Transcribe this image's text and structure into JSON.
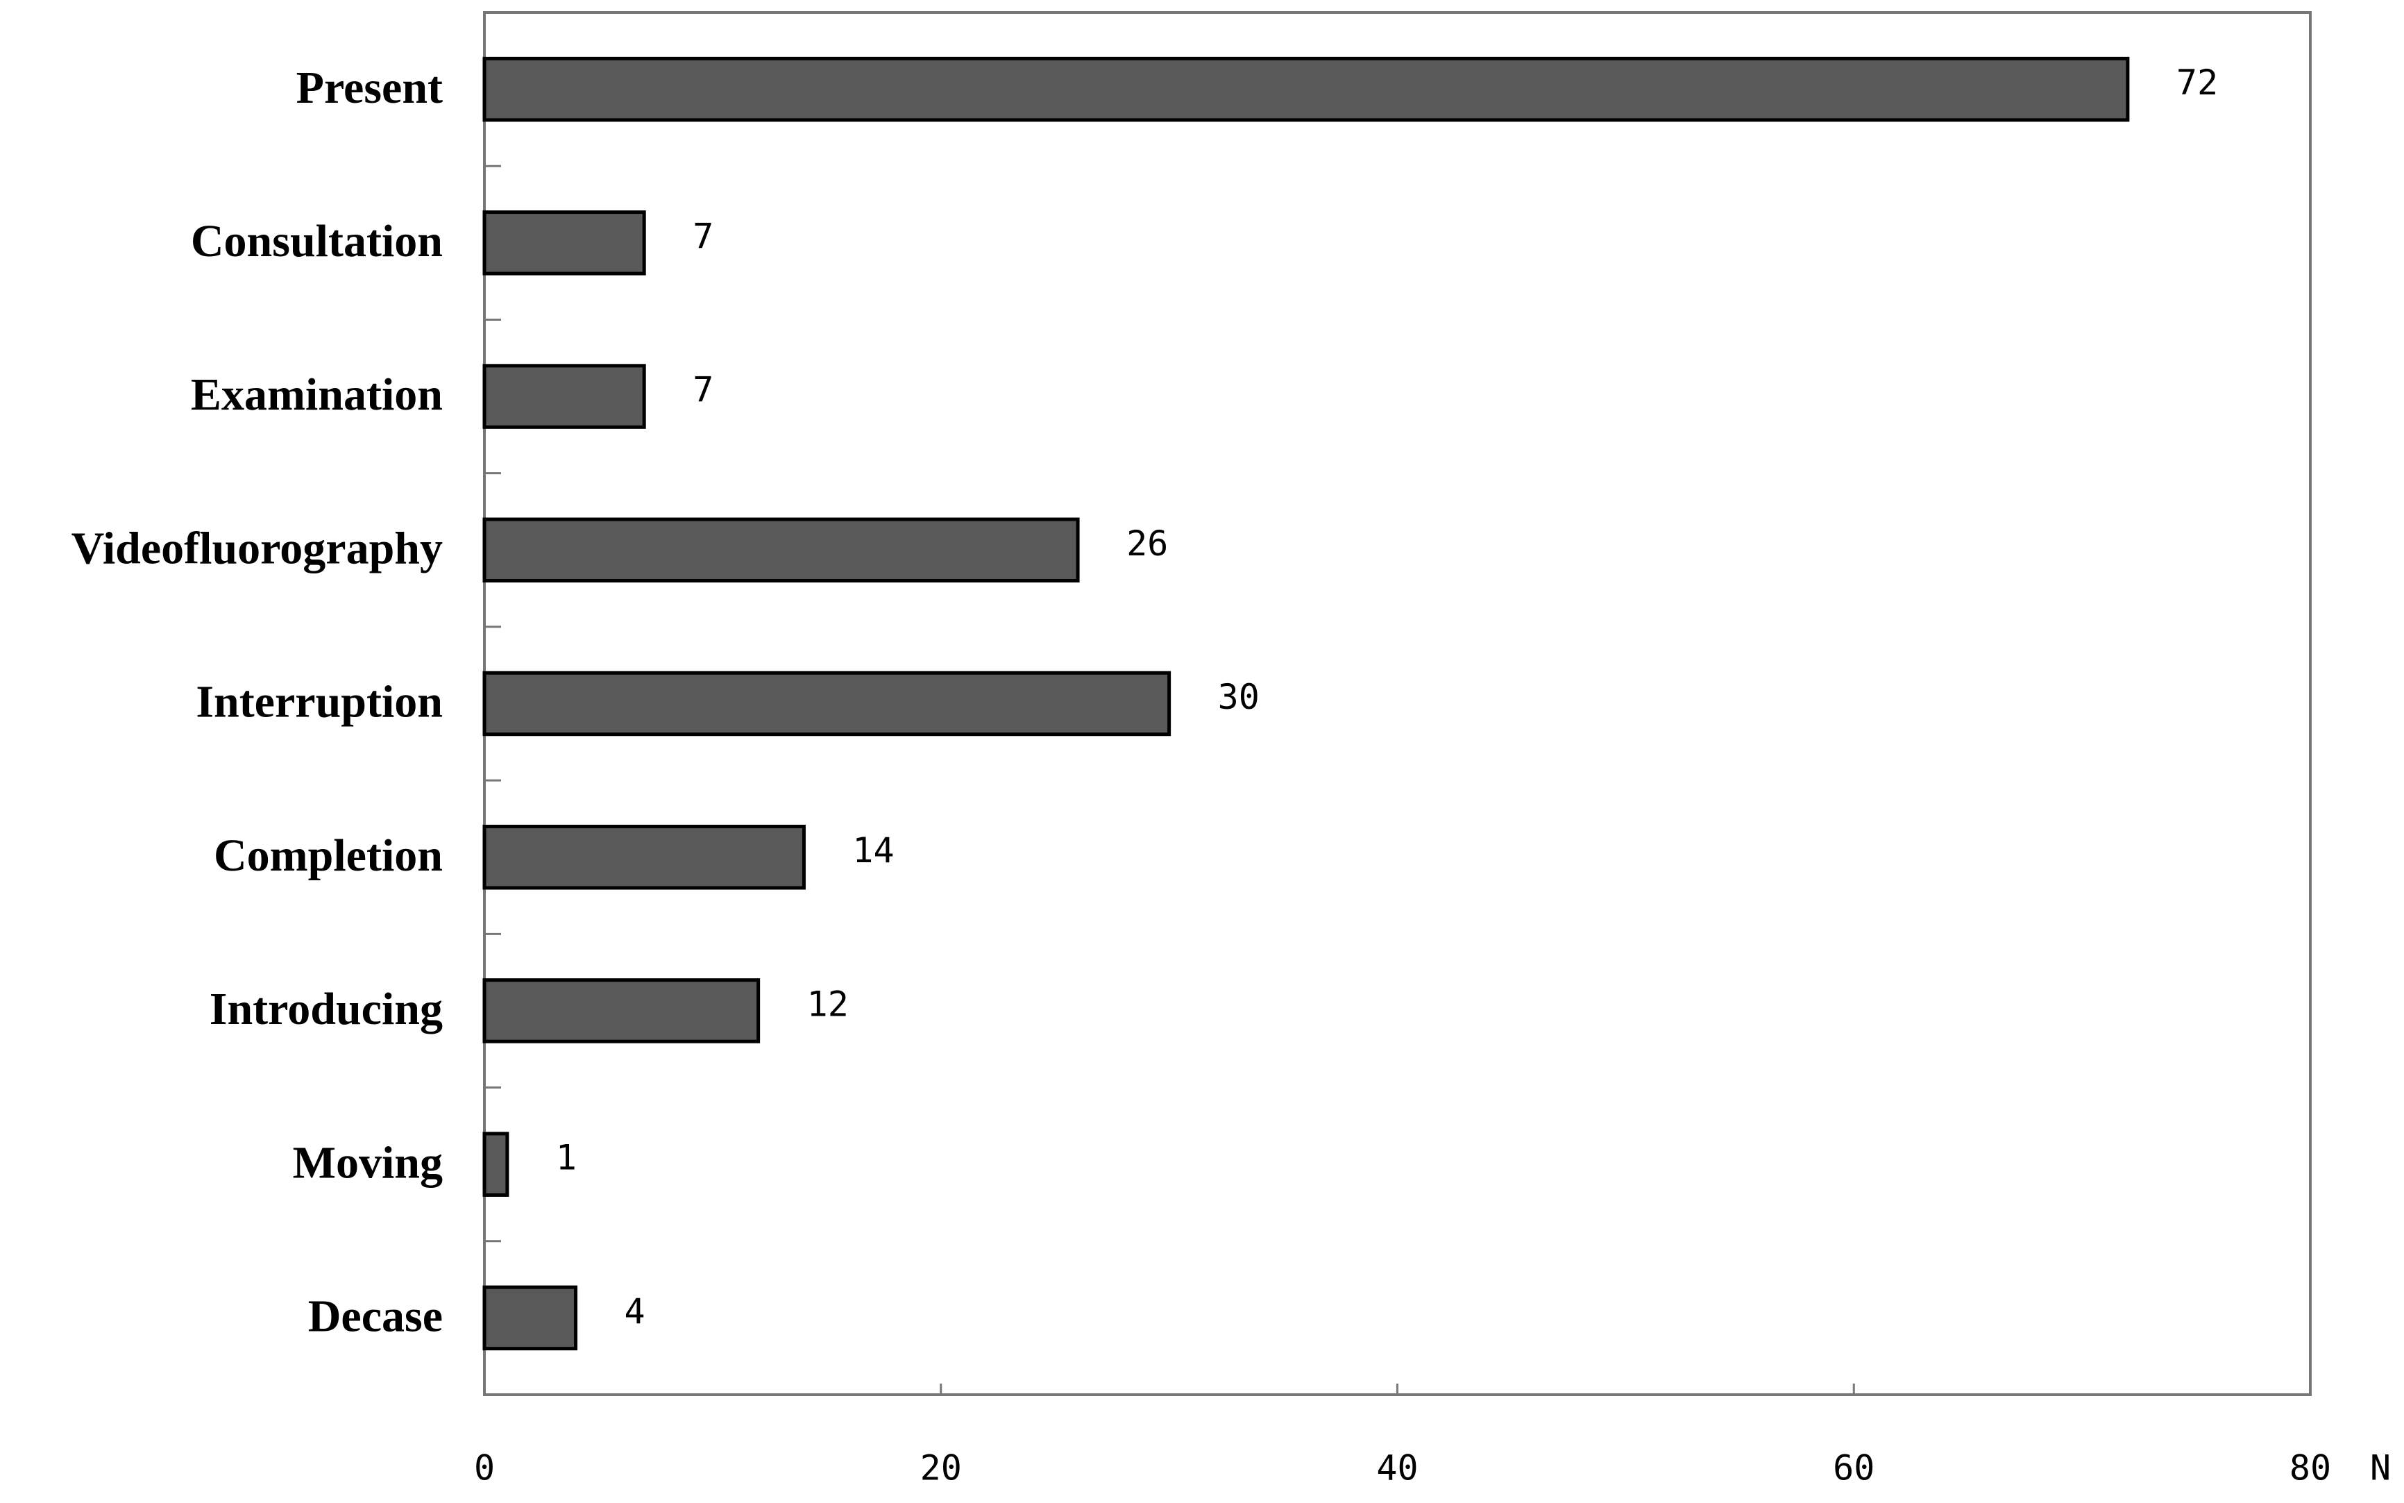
{
  "chart_data": {
    "type": "bar",
    "orientation": "horizontal",
    "categories": [
      "Present",
      "Consultation",
      "Examination",
      "Videofluorography",
      "Interruption",
      "Completion",
      "Introducing",
      "Moving",
      "Decase"
    ],
    "values": [
      72,
      7,
      7,
      26,
      30,
      14,
      12,
      1,
      4
    ],
    "color": "#595959",
    "xlabel": "N",
    "xlim": [
      0,
      80
    ],
    "xticks": [
      0,
      20,
      40,
      60,
      80
    ]
  }
}
